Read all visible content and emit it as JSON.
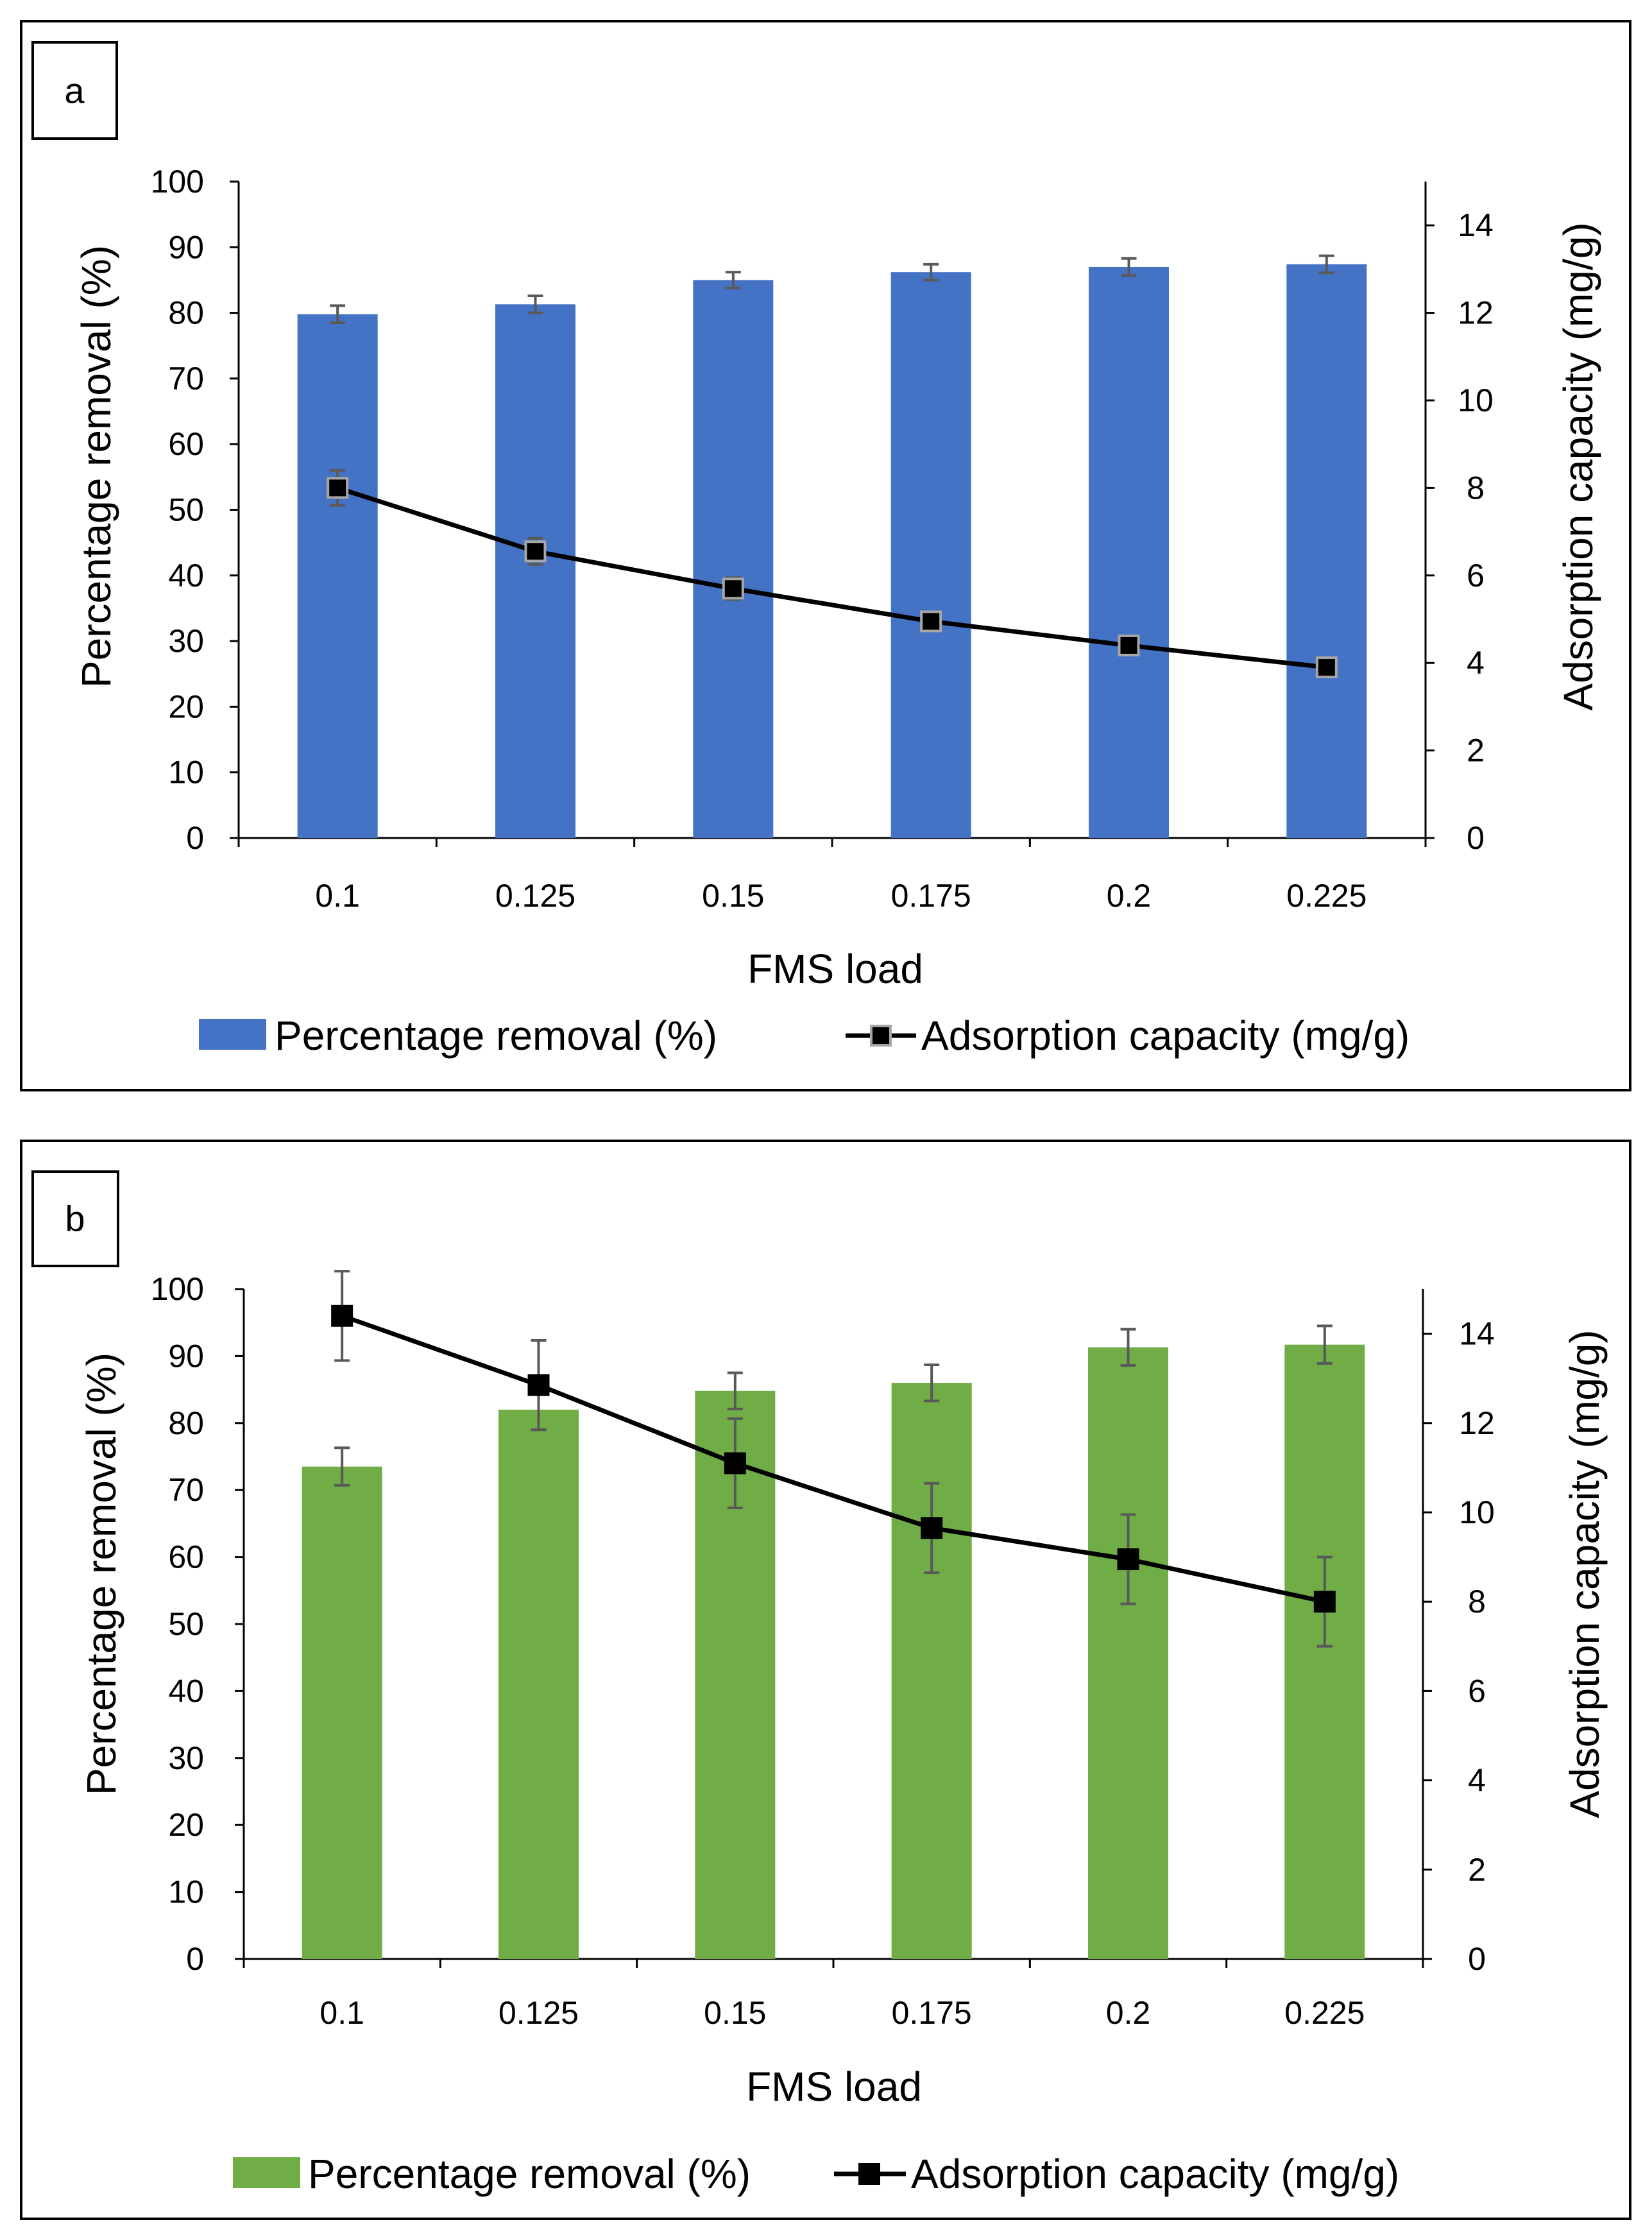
{
  "chart_data": [
    {
      "panel_label": "a",
      "type": "bar",
      "title": "",
      "xlabel": "FMS load",
      "ylabel": "Percentage removal (%)",
      "y2label": "Adsorption capacity (mg/g)",
      "categories": [
        "0.1",
        "0.125",
        "0.15",
        "0.175",
        "0.2",
        "0.225"
      ],
      "ylim": [
        0,
        100
      ],
      "y_ticks": [
        "0",
        "10",
        "20",
        "30",
        "40",
        "50",
        "60",
        "70",
        "80",
        "90",
        "100"
      ],
      "y2lim": [
        0,
        15
      ],
      "y2_ticks": [
        "0",
        "2",
        "4",
        "6",
        "8",
        "10",
        "12",
        "14"
      ],
      "series": [
        {
          "name": "Percentage removal (%)",
          "kind": "bar",
          "axis": "left",
          "color": "#4472C4",
          "values": [
            79.8,
            81.3,
            85.0,
            86.2,
            87.0,
            87.4
          ],
          "errors": [
            1.3,
            1.3,
            1.2,
            1.2,
            1.3,
            1.3
          ]
        },
        {
          "name": "Adsorption capacity (mg/g)",
          "kind": "line",
          "axis": "right",
          "color": "#000000",
          "marker_edge": "#A6A6A6",
          "values": [
            8.0,
            6.55,
            5.7,
            4.95,
            4.4,
            3.9
          ],
          "errors": [
            0.4,
            0.3,
            0.25,
            0.15,
            0.12,
            0.1
          ]
        }
      ],
      "legend": "bottom"
    },
    {
      "panel_label": "b",
      "type": "bar",
      "title": "",
      "xlabel": "FMS load",
      "ylabel": "Percentage removal (%)",
      "y2label": "Adsorption capacity (mg/g)",
      "categories": [
        "0.1",
        "0.125",
        "0.15",
        "0.175",
        "0.2",
        "0.225"
      ],
      "ylim": [
        0,
        100
      ],
      "y_ticks": [
        "0",
        "10",
        "20",
        "30",
        "40",
        "50",
        "60",
        "70",
        "80",
        "90",
        "100"
      ],
      "y2lim": [
        0,
        15
      ],
      "y2_ticks": [
        "0",
        "2",
        "4",
        "6",
        "8",
        "10",
        "12",
        "14"
      ],
      "series": [
        {
          "name": "Percentage removal (%)",
          "kind": "bar",
          "axis": "left",
          "color": "#70AD47",
          "values": [
            73.5,
            82.0,
            84.8,
            86.0,
            91.3,
            91.7
          ],
          "errors": [
            2.8,
            3.0,
            2.7,
            2.7,
            2.7,
            2.8
          ]
        },
        {
          "name": "Adsorption capacity (mg/g)",
          "kind": "line",
          "axis": "right",
          "color": "#000000",
          "marker_edge": "#000000",
          "values": [
            14.4,
            12.85,
            11.1,
            9.65,
            8.95,
            8.0
          ],
          "errors": [
            1.0,
            1.0,
            1.0,
            1.0,
            1.0,
            1.0
          ]
        }
      ],
      "legend": "bottom"
    }
  ]
}
